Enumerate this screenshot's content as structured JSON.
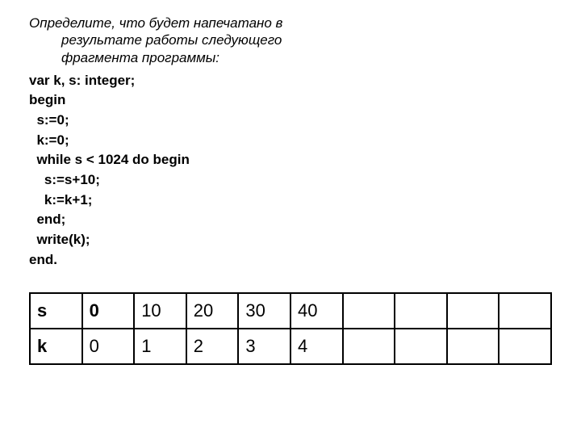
{
  "prompt": "Определите, что будет напечатано в результате работы следующего фрагмента программы:",
  "code": [
    "var k, s: integer;",
    "begin",
    "  s:=0;",
    "  k:=0;",
    "  while s < 1024 do begin",
    "    s:=s+10;",
    "    k:=k+1;",
    "  end;",
    "  write(k);",
    "end."
  ],
  "table": {
    "columns": 10,
    "border_color": "#000000",
    "cell_fontsize": 22,
    "rows": [
      {
        "label": "s",
        "label_bold": true,
        "values": [
          "0",
          "10",
          "20",
          "30",
          "40",
          "",
          "",
          "",
          ""
        ],
        "first_value_bold": true
      },
      {
        "label": "k",
        "label_bold": true,
        "values": [
          "0",
          "1",
          "2",
          "3",
          "4",
          "",
          "",
          "",
          ""
        ],
        "first_value_bold": false
      }
    ]
  }
}
